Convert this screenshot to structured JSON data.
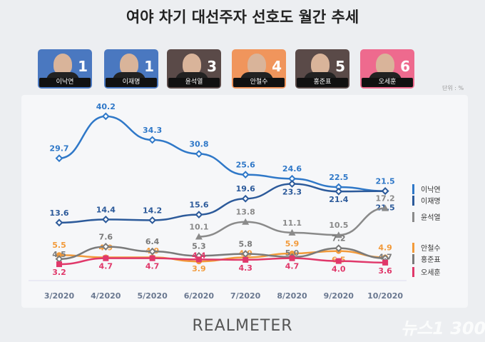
{
  "header": {
    "title": "여야 차기 대선주자 선호도 월간 추세",
    "unit": "단위 : %"
  },
  "candidates": [
    {
      "name": "이낙연",
      "rank": "1",
      "bg": "#4a78c0"
    },
    {
      "name": "이재명",
      "rank": "1",
      "bg": "#4a78c0"
    },
    {
      "name": "윤석열",
      "rank": "3",
      "bg": "#5a4a48"
    },
    {
      "name": "안철수",
      "rank": "4",
      "bg": "#f0955c"
    },
    {
      "name": "홍준표",
      "rank": "5",
      "bg": "#5a4a48"
    },
    {
      "name": "오세훈",
      "rank": "6",
      "bg": "#ee6a8e"
    }
  ],
  "footer": {
    "logo": "REALMETER",
    "watermark": "뉴스1 300"
  },
  "chart_data": {
    "type": "line",
    "title": "여야 차기 대선주자 선호도 월간 추세",
    "ylabel": "%",
    "categories": [
      "3/2020",
      "4/2020",
      "5/2020",
      "6/2020",
      "7/2020",
      "8/2020",
      "9/2020",
      "10/2020"
    ],
    "series": [
      {
        "name": "이낙연",
        "color": "#2f78c8",
        "marker": "diamond",
        "values": [
          29.7,
          40.2,
          34.3,
          30.8,
          25.6,
          24.6,
          22.5,
          21.5
        ]
      },
      {
        "name": "이재명",
        "color": "#2c5a9a",
        "marker": "diamond",
        "values": [
          13.6,
          14.4,
          14.2,
          15.6,
          19.6,
          23.3,
          21.4,
          21.5
        ]
      },
      {
        "name": "윤석열",
        "color": "#8a8a8a",
        "marker": "triangle",
        "values": [
          null,
          null,
          null,
          10.1,
          13.8,
          11.1,
          10.5,
          17.2
        ]
      },
      {
        "name": "안철수",
        "color": "#f29a3a",
        "marker": "circle",
        "values": [
          5.5,
          4.9,
          4.9,
          3.9,
          4.9,
          5.9,
          6.5,
          4.9
        ]
      },
      {
        "name": "홍준표",
        "color": "#7a7a7a",
        "marker": "diamond",
        "values": [
          4.5,
          7.6,
          6.4,
          5.3,
          5.8,
          5.0,
          7.2,
          4.7
        ]
      },
      {
        "name": "오세훈",
        "color": "#e0386a",
        "marker": "square",
        "values": [
          3.2,
          4.7,
          4.7,
          4.4,
          4.3,
          4.7,
          4.0,
          3.6
        ]
      }
    ],
    "legend_position": "right"
  }
}
